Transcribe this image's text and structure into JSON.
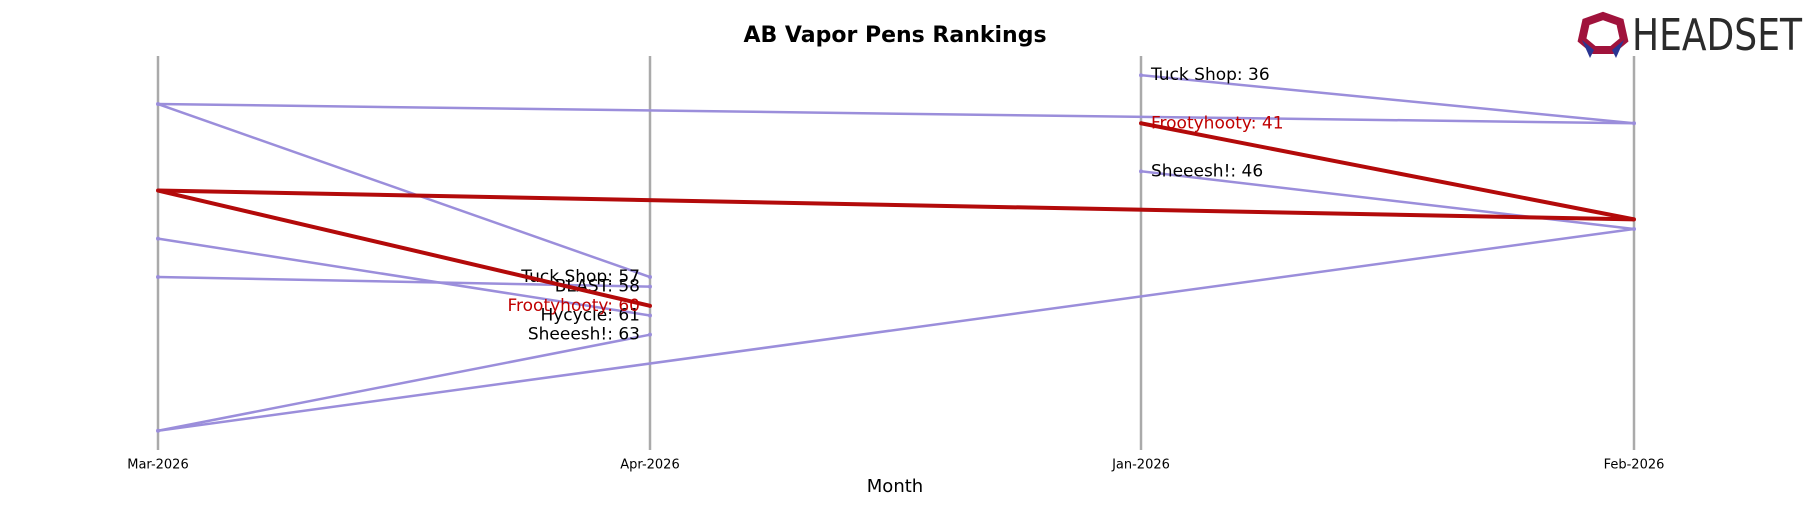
{
  "logo": "HEADSET",
  "chart_data": {
    "type": "bump",
    "title": "AB Vapor Pens Rankings",
    "x_label": "Month",
    "categories": [
      "Mar-2026",
      "Apr-2026",
      "Jan-2026",
      "Feb-2026"
    ],
    "ylim": [
      34,
      75
    ],
    "invert_y": true,
    "series": [
      {
        "name": "Tuck Shop",
        "color": "#9b8edb",
        "label_color": "#000000",
        "width": 2.5,
        "values": [
          39,
          57,
          36,
          41
        ],
        "value_labels": [
          null,
          "Tuck Shop: 57",
          "Tuck Shop: 36",
          null
        ]
      },
      {
        "name": "BLAST",
        "color": "#9b8edb",
        "label_color": "#000000",
        "width": 2.5,
        "values": [
          57,
          58,
          null,
          null
        ],
        "value_labels": [
          null,
          "BLAST: 58",
          null,
          null
        ]
      },
      {
        "name": "Hycycle",
        "color": "#9b8edb",
        "label_color": "#000000",
        "width": 2.5,
        "values": [
          53,
          61,
          null,
          null
        ],
        "value_labels": [
          null,
          "Hycycle: 61",
          null,
          null
        ]
      },
      {
        "name": "Sheeesh!",
        "color": "#9b8edb",
        "label_color": "#000000",
        "width": 2.5,
        "values": [
          73,
          63,
          46,
          52
        ],
        "value_labels": [
          null,
          "Sheeesh!: 63",
          "Sheeesh!: 46",
          null
        ]
      },
      {
        "name": "Frootyhooty",
        "color": "#b30a0a",
        "label_color": "#c00000",
        "width": 4,
        "values": [
          48,
          60,
          41,
          51
        ],
        "value_labels": [
          null,
          "Frootyhooty: 60",
          "Frootyhooty: 41",
          null
        ]
      }
    ]
  }
}
